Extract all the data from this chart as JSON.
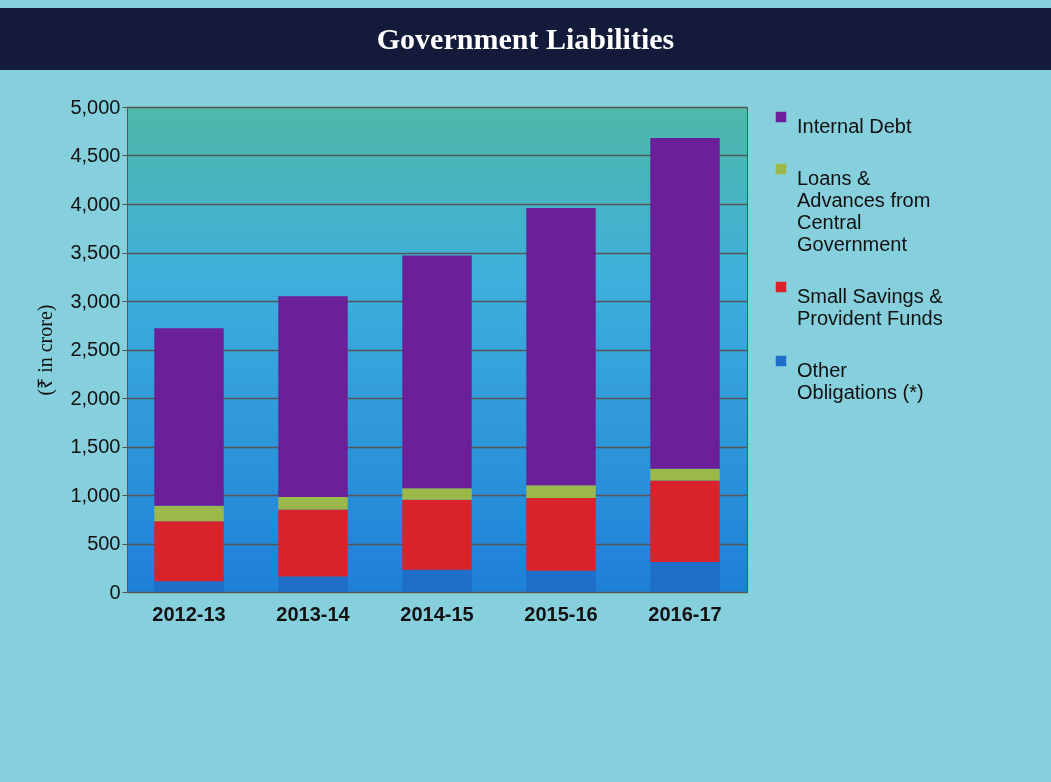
{
  "chart_data": {
    "type": "bar",
    "title": "Government Liabilities",
    "ylabel": "(₹ in crore)",
    "stacked": true,
    "categories": [
      "2012-13",
      "2013-14",
      "2014-15",
      "2015-16",
      "2016-17"
    ],
    "series": [
      {
        "name": "Other Obligations (*)",
        "color": "#1f6fc8",
        "values": [
          110,
          160,
          230,
          220,
          310
        ]
      },
      {
        "name": "Small Savings & Provident Funds",
        "color": "#d9232b",
        "values": [
          620,
          690,
          720,
          750,
          840
        ]
      },
      {
        "name": "Loans & Advances from Central Government",
        "color": "#9bb84a",
        "values": [
          160,
          130,
          120,
          130,
          120
        ]
      },
      {
        "name": "Internal Debt",
        "color": "#6b1f98",
        "values": [
          1830,
          2070,
          2400,
          2860,
          3410
        ]
      }
    ],
    "ylim": [
      0,
      5000
    ],
    "yticks": [
      {
        "value": 0,
        "label": "0"
      },
      {
        "value": 500,
        "label": "500"
      },
      {
        "value": 1000,
        "label": "1,000"
      },
      {
        "value": 1500,
        "label": "1,500"
      },
      {
        "value": 2000,
        "label": "2,000"
      },
      {
        "value": 2500,
        "label": "2,500"
      },
      {
        "value": 3000,
        "label": "3,000"
      },
      {
        "value": 3500,
        "label": "3,500"
      },
      {
        "value": 4000,
        "label": "4,000"
      },
      {
        "value": 4500,
        "label": "4,500"
      },
      {
        "value": 5000,
        "label": "5,000"
      }
    ],
    "grid": "y",
    "legend": "right"
  }
}
